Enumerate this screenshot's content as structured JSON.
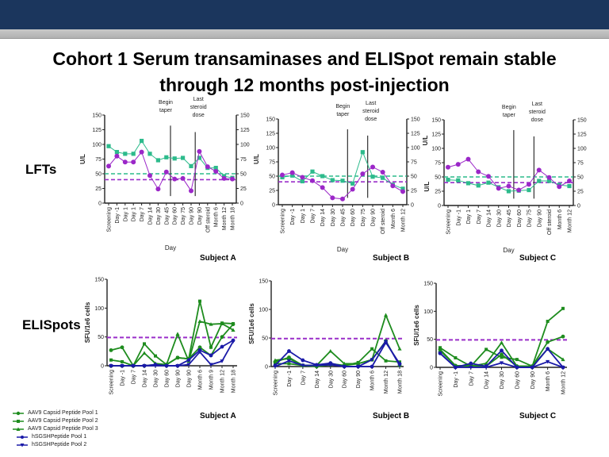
{
  "title_line1": "Cohort 1 Serum transaminases and ELISpot remain stable",
  "title_line2": "through 12 months post-injection",
  "row_labels": {
    "lfts": "LFTs",
    "elispots": "ELISpots"
  },
  "colors": {
    "header": "#1b365d",
    "lft_green": "#2dbb8c",
    "lft_purple": "#9b27c8",
    "threshold_purple": "#9a2fc9",
    "pool_green": "#1e8c1e",
    "hsgsh_blue": "#1a1aa8"
  },
  "legend": [
    {
      "label": "AAV9 Capsid Peptide Pool 1",
      "color": "#1e8c1e"
    },
    {
      "label": "AAV9 Capsid Peptide Pool 2",
      "color": "#1e8c1e"
    },
    {
      "label": "AAV9 Capsid Peptide Pool 3",
      "color": "#1e8c1e"
    },
    {
      "label": "hSGSHPeptide Pool 1",
      "color": "#1a1aa8"
    },
    {
      "label": "hSGSHPeptide Pool 2",
      "color": "#1a1aa8"
    }
  ],
  "chart_data": [
    {
      "type": "line",
      "group": "lft",
      "subject": "Subject A",
      "xlabel": "Day",
      "ylabel": "U/L",
      "ylabel_right": "U/L",
      "ylim": [
        0,
        150
      ],
      "yticks": [
        0,
        25,
        50,
        75,
        100,
        125,
        150
      ],
      "grid": false,
      "categories": [
        "Screening",
        "Day -1",
        "Day 1",
        "Day 1",
        "Day 7",
        "Day 14",
        "Day 30",
        "Day 45",
        "Day 60",
        "Day 75",
        "Day 90",
        "Day 90",
        "Off steroid",
        "Month 6",
        "Month 12",
        "Month 18"
      ],
      "series": [
        {
          "color": "#2dbb8c",
          "marker": "square",
          "values": [
            97,
            87,
            84,
            84,
            106,
            84,
            73,
            78,
            76,
            77,
            63,
            77,
            60,
            60,
            46,
            43
          ]
        },
        {
          "color": "#9b27c8",
          "marker": "circle",
          "values": [
            63,
            80,
            70,
            70,
            87,
            47,
            24,
            53,
            41,
            42,
            21,
            88,
            62,
            54,
            42,
            41
          ]
        }
      ],
      "thresholds": [
        {
          "value": 50,
          "color": "#2dbb8c"
        },
        {
          "value": 40,
          "color": "#9a2fc9"
        }
      ],
      "annotations": [
        {
          "text": [
            "Begin",
            "taper"
          ],
          "after_index": 7
        },
        {
          "text": [
            "Last",
            "steroid",
            "dose"
          ],
          "after_index": 10
        }
      ]
    },
    {
      "type": "line",
      "group": "lft",
      "subject": "Subject B",
      "xlabel": "Day",
      "ylabel": "",
      "ylabel_right": "U/L",
      "ylim": [
        0,
        150
      ],
      "yticks": [
        0,
        25,
        50,
        75,
        100,
        125,
        150
      ],
      "grid": false,
      "categories": [
        "Screening",
        "Day -1",
        "Day 1",
        "Day 7",
        "Day 14",
        "Day 30",
        "Day 45",
        "Day 60",
        "Day 75",
        "Day 90",
        "Off steroid",
        "Month 6",
        "Month 12"
      ],
      "series": [
        {
          "color": "#2dbb8c",
          "marker": "square",
          "values": [
            48,
            51,
            41,
            58,
            50,
            43,
            42,
            37,
            92,
            49,
            47,
            35,
            28
          ]
        },
        {
          "color": "#9b27c8",
          "marker": "circle",
          "values": [
            52,
            56,
            48,
            42,
            30,
            12,
            10,
            27,
            54,
            66,
            57,
            33,
            23
          ]
        }
      ],
      "thresholds": [
        {
          "value": 50,
          "color": "#2dbb8c"
        },
        {
          "value": 40,
          "color": "#9a2fc9"
        }
      ],
      "annotations": [
        {
          "text": [
            "Begin",
            "taper"
          ],
          "after_index": 6
        },
        {
          "text": [
            "Last",
            "steroid",
            "dose"
          ],
          "after_index": 8
        }
      ]
    },
    {
      "type": "line",
      "group": "lft",
      "subject": "Subject C",
      "xlabel": "Day",
      "ylabel": "U/L",
      "ylabel_right": "",
      "ylim": [
        0,
        150
      ],
      "yticks": [
        0,
        25,
        50,
        75,
        100,
        125,
        150
      ],
      "grid": false,
      "categories": [
        "Screening",
        "Day -1",
        "Day 1",
        "Day 7",
        "Day 14",
        "Day 30",
        "Day 45",
        "Day 60",
        "Day 75",
        "Day 90",
        "Off steroid",
        "Month 6",
        "Month 12"
      ],
      "series": [
        {
          "color": "#2dbb8c",
          "marker": "square",
          "values": [
            45,
            44,
            39,
            35,
            40,
            32,
            25,
            26,
            27,
            43,
            43,
            36,
            34
          ]
        },
        {
          "color": "#9b27c8",
          "marker": "circle",
          "values": [
            67,
            72,
            81,
            59,
            51,
            30,
            34,
            27,
            37,
            62,
            49,
            33,
            43
          ]
        }
      ],
      "thresholds": [
        {
          "value": 50,
          "color": "#2dbb8c"
        },
        {
          "value": 40,
          "color": "#9a2fc9"
        }
      ],
      "annotations": [
        {
          "text": [
            "Begin",
            "taper"
          ],
          "after_index": 6
        },
        {
          "text": [
            "Last",
            "steroid",
            "dose"
          ],
          "after_index": 8
        }
      ]
    },
    {
      "type": "line",
      "group": "elispot",
      "subject": "Subject A",
      "xlabel": "",
      "ylabel": "SFU/1e6 cells",
      "ylim": [
        0,
        150
      ],
      "yticks": [
        0,
        50,
        100,
        150
      ],
      "grid": false,
      "categories": [
        "Screening",
        "Day -1",
        "Day 7",
        "Day 14",
        "Day 30",
        "Day 60",
        "Day 90",
        "Day 90",
        "Month 6",
        "Month 9",
        "Month 12",
        "Month 18"
      ],
      "series": [
        {
          "name": "AAV9 Capsid Peptide Pool 1",
          "color": "#1e8c1e",
          "marker": "circle",
          "values": [
            27,
            32,
            0,
            0,
            2,
            2,
            14,
            12,
            32,
            18,
            50,
            72
          ]
        },
        {
          "name": "AAV9 Capsid Peptide Pool 2",
          "color": "#1e8c1e",
          "marker": "square",
          "values": [
            10,
            7,
            0,
            38,
            17,
            2,
            14,
            12,
            112,
            32,
            74,
            73
          ]
        },
        {
          "name": "AAV9 Capsid Peptide Pool 3",
          "color": "#1e8c1e",
          "marker": "triangle",
          "values": [
            0,
            0,
            0,
            22,
            4,
            2,
            55,
            8,
            77,
            72,
            73,
            62
          ]
        },
        {
          "name": "hSGSHPeptide Pool 1",
          "color": "#1a1aa8",
          "marker": "circle",
          "values": [
            0,
            0,
            0,
            0,
            2,
            0,
            0,
            10,
            27,
            18,
            33,
            44
          ]
        },
        {
          "name": "hSGSHPeptide Pool 2",
          "color": "#1a1aa8",
          "marker": "triangle-down",
          "values": [
            0,
            0,
            0,
            0,
            0,
            0,
            0,
            2,
            24,
            2,
            8,
            42
          ]
        }
      ],
      "thresholds": [
        {
          "value": 49,
          "color": "#9a2fc9"
        }
      ]
    },
    {
      "type": "line",
      "group": "elispot",
      "subject": "Subject B",
      "xlabel": "",
      "ylabel": "SFU/1e6 cells",
      "ylim": [
        0,
        150
      ],
      "yticks": [
        0,
        50,
        100,
        150
      ],
      "grid": false,
      "categories": [
        "Screening",
        "Day -1",
        "Day 7",
        "Day 14",
        "Day 30",
        "Day 60",
        "Day 90",
        "Month 6",
        "Month 12",
        "Month 18"
      ],
      "series": [
        {
          "name": "AAV9 Capsid Peptide Pool 1",
          "color": "#1e8c1e",
          "marker": "circle",
          "values": [
            8,
            16,
            2,
            0,
            3,
            2,
            5,
            12,
            45,
            2
          ]
        },
        {
          "name": "AAV9 Capsid Peptide Pool 2",
          "color": "#1e8c1e",
          "marker": "square",
          "values": [
            5,
            5,
            2,
            2,
            5,
            2,
            7,
            31,
            10,
            8
          ]
        },
        {
          "name": "AAV9 Capsid Peptide Pool 3",
          "color": "#1e8c1e",
          "marker": "triangle",
          "values": [
            11,
            14,
            2,
            2,
            27,
            5,
            5,
            12,
            90,
            31
          ]
        },
        {
          "name": "hSGSHPeptide Pool 1",
          "color": "#1a1aa8",
          "marker": "circle",
          "values": [
            2,
            27,
            11,
            3,
            6,
            0,
            0,
            0,
            42,
            5
          ]
        },
        {
          "name": "hSGSHPeptide Pool 2",
          "color": "#1a1aa8",
          "marker": "triangle-down",
          "values": [
            0,
            10,
            2,
            2,
            3,
            0,
            0,
            12,
            44,
            2
          ]
        }
      ],
      "thresholds": [
        {
          "value": 49,
          "color": "#9a2fc9"
        }
      ]
    },
    {
      "type": "line",
      "group": "elispot",
      "subject": "Subject C",
      "xlabel": "",
      "ylabel": "SFU/1e6 cells",
      "ylim": [
        0,
        150
      ],
      "yticks": [
        0,
        50,
        100,
        150
      ],
      "grid": false,
      "categories": [
        "Screening",
        "Day -1",
        "Day 7",
        "Day 14",
        "Day 30",
        "Day 60",
        "Day 90",
        "Month 6",
        "Month 12"
      ],
      "series": [
        {
          "name": "AAV9 Capsid Peptide Pool 1",
          "color": "#1e8c1e",
          "marker": "circle",
          "values": [
            32,
            3,
            3,
            2,
            23,
            2,
            2,
            45,
            55
          ]
        },
        {
          "name": "AAV9 Capsid Peptide Pool 2",
          "color": "#1e8c1e",
          "marker": "square",
          "values": [
            35,
            17,
            2,
            32,
            18,
            14,
            2,
            82,
            105
          ]
        },
        {
          "name": "AAV9 Capsid Peptide Pool 3",
          "color": "#1e8c1e",
          "marker": "triangle",
          "values": [
            30,
            3,
            2,
            7,
            44,
            2,
            2,
            33,
            14
          ]
        },
        {
          "name": "hSGSHPeptide Pool 1",
          "color": "#1a1aa8",
          "marker": "circle",
          "values": [
            25,
            0,
            7,
            2,
            30,
            0,
            0,
            33,
            0
          ]
        },
        {
          "name": "hSGSHPeptide Pool 2",
          "color": "#1a1aa8",
          "marker": "triangle-down",
          "values": [
            25,
            0,
            0,
            0,
            8,
            0,
            0,
            10,
            0
          ]
        }
      ],
      "thresholds": [
        {
          "value": 49,
          "color": "#9a2fc9"
        }
      ]
    }
  ]
}
